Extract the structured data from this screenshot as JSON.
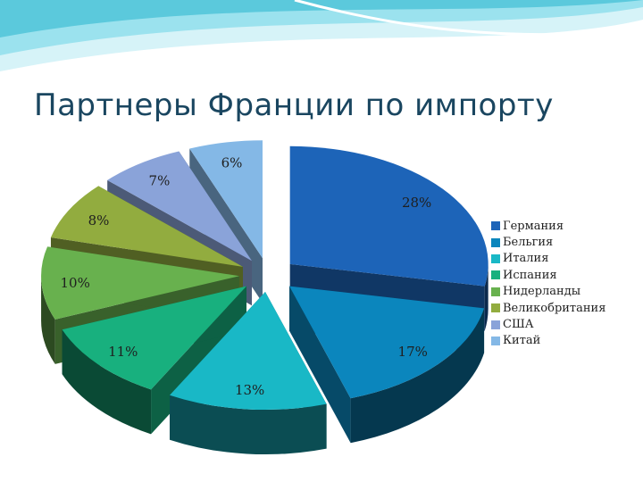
{
  "slide": {
    "title": "Партнеры Франции по импорту",
    "accent_colors": [
      "#5bc9dc",
      "#9be2ee",
      "#d6f3f8"
    ]
  },
  "chart_data": {
    "type": "pie",
    "style": "3d-exploded",
    "categories": [
      "Германия",
      "Бельгия",
      "Италия",
      "Испания",
      "Нидерланды",
      "Великобритания",
      "США",
      "Китай"
    ],
    "values": [
      28,
      17,
      13,
      11,
      10,
      8,
      7,
      6
    ],
    "data_labels": [
      "28%",
      "17%",
      "13%",
      "11%",
      "10%",
      "8%",
      "7%",
      "6%"
    ],
    "colors": [
      "#1d64b8",
      "#0b86bd",
      "#19b8c6",
      "#18b07e",
      "#68b14e",
      "#92ac3f",
      "#8aa3d9",
      "#84b8e6"
    ],
    "legend_position": "right"
  }
}
